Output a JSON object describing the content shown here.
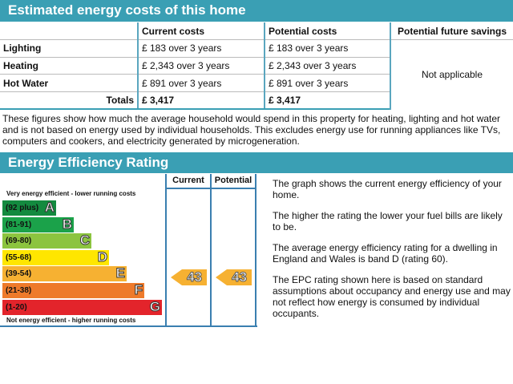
{
  "costs": {
    "title": "Estimated energy costs of this home",
    "headers": [
      "",
      "Current costs",
      "Potential costs",
      "Potential future savings"
    ],
    "rows": [
      {
        "label": "Lighting",
        "current": "£ 183 over 3 years",
        "potential": "£ 183 over 3 years"
      },
      {
        "label": "Heating",
        "current": "£ 2,343 over 3 years",
        "potential": "£ 2,343 over 3 years"
      },
      {
        "label": "Hot Water",
        "current": "£ 891 over 3 years",
        "potential": "£ 891 over 3 years"
      }
    ],
    "savings": "Not applicable",
    "totals": {
      "label": "Totals",
      "current": "£ 3,417",
      "potential": "£ 3,417"
    },
    "note": "These figures show how much the average household would spend in this property for heating, lighting and hot water and is not based on energy used by individual households. This excludes energy use for running appliances like TVs, computers and cookers, and electricity generated by microgeneration."
  },
  "rating": {
    "title": "Energy Efficiency Rating",
    "col_current": "Current",
    "col_potential": "Potential",
    "top_label": "Very energy efficient - lower running costs",
    "bottom_label": "Not energy efficient - higher running costs",
    "bands": [
      {
        "range": "(92 plus)",
        "letter": "A",
        "color": "#138a3f"
      },
      {
        "range": "(81-91)",
        "letter": "B",
        "color": "#1ba24a"
      },
      {
        "range": "(69-80)",
        "letter": "C",
        "color": "#8cc43f"
      },
      {
        "range": "(55-68)",
        "letter": "D",
        "color": "#ffe600"
      },
      {
        "range": "(39-54)",
        "letter": "E",
        "color": "#f6b132"
      },
      {
        "range": "(21-38)",
        "letter": "F",
        "color": "#ee7a2b"
      },
      {
        "range": "(1-20)",
        "letter": "G",
        "color": "#e3242b"
      }
    ],
    "current": "43",
    "potential": "43",
    "desc": [
      "The graph shows the current energy efficiency of your home.",
      "The higher the rating the lower your fuel bills are likely to be.",
      "The average energy efficiency rating for a dwelling in England and Wales is band D (rating 60).",
      "The EPC rating shown here is based on standard assumptions about occupancy and energy use and may not reflect how energy is consumed by individual occupants."
    ]
  }
}
